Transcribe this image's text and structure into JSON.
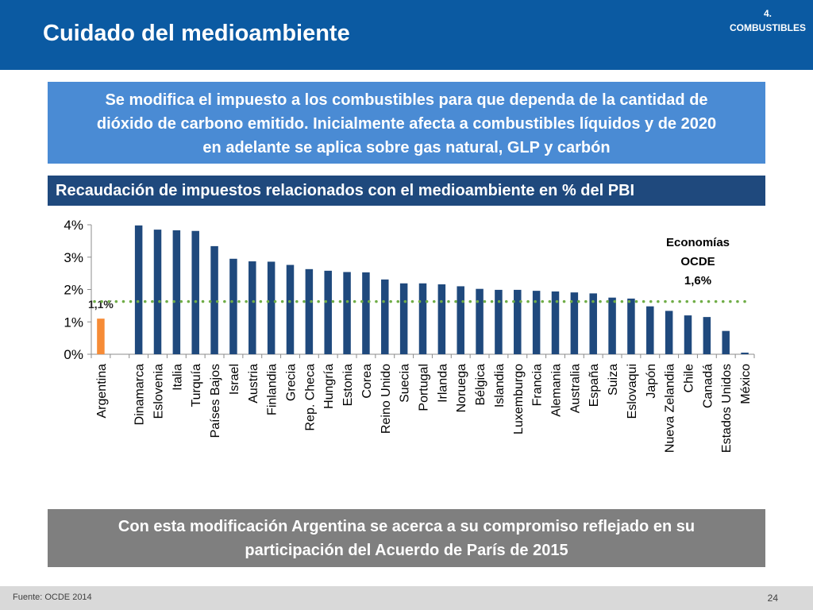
{
  "header": {
    "title": "Cuidado del medioambiente",
    "section_number": "4.",
    "section_name": "COMBUSTIBLES"
  },
  "info_box": {
    "lines": [
      "Se modifica el impuesto a los combustibles para que dependa de la cantidad de",
      "dióxido de carbono emitido. Inicialmente afecta a combustibles líquidos y de 2020",
      "en adelante se aplica sobre gas natural, GLP y carbón"
    ]
  },
  "chart_title": "Recaudación de impuestos relacionados con el medioambiente en % del PBI",
  "bottom_box": {
    "lines": [
      "Con esta modificación Argentina se acerca a su compromiso reflejado en su",
      "participación del Acuerdo de París de 2015"
    ]
  },
  "footer": {
    "source": "Fuente: OCDE 2014",
    "page_number": "24"
  },
  "colors": {
    "header_bg": "#0b5aa2",
    "info_box_bg": "#4a8bd4",
    "chart_title_bg": "#1f497d",
    "bar_oecd": "#1f497d",
    "bar_argentina": "#f68b36",
    "average_line": "#70ad47",
    "bottom_box_bg": "#7f7f7f",
    "footer_bg": "#d9d9d9"
  },
  "chart_data": {
    "type": "bar",
    "categories": [
      "Argentina",
      "",
      "Dinamarca",
      "Eslovenia",
      "Italia",
      "Turquía",
      "Países Bajos",
      "Israel",
      "Austria",
      "Finlandia",
      "Grecia",
      "Rep. Checa",
      "Hungría",
      "Estonia",
      "Corea",
      "Reino Unido",
      "Suecia",
      "Portugal",
      "Irlanda",
      "Noruega",
      "Bélgica",
      "Islandia",
      "Luxemburgo",
      "Francia",
      "Alemania",
      "Australia",
      "España",
      "Suiza",
      "Eslovaqui",
      "Japón",
      "Nueva Zelandia",
      "Chile",
      "Canadá",
      "Estados Unidos",
      "México"
    ],
    "values": [
      1.1,
      null,
      3.98,
      3.85,
      3.83,
      3.81,
      3.34,
      2.95,
      2.87,
      2.86,
      2.76,
      2.63,
      2.58,
      2.54,
      2.53,
      2.31,
      2.19,
      2.19,
      2.16,
      2.1,
      2.02,
      1.99,
      1.99,
      1.96,
      1.94,
      1.91,
      1.88,
      1.75,
      1.72,
      1.48,
      1.34,
      1.2,
      1.15,
      0.72,
      0.05
    ],
    "highlight_category": "Argentina",
    "highlight_label": "1,1%",
    "reference_line": {
      "value": 1.63,
      "label_lines": [
        "Economías",
        "OCDE",
        "1,6%"
      ],
      "style": "dotted"
    },
    "ylim": [
      0,
      4
    ],
    "yticks": [
      0,
      1,
      2,
      3,
      4
    ],
    "ytick_labels": [
      "0%",
      "1%",
      "2%",
      "3%",
      "4%"
    ],
    "title": "Recaudación de impuestos relacionados con el medioambiente en % del PBI",
    "xlabel": "",
    "ylabel": "",
    "grid": false,
    "legend": "none"
  }
}
